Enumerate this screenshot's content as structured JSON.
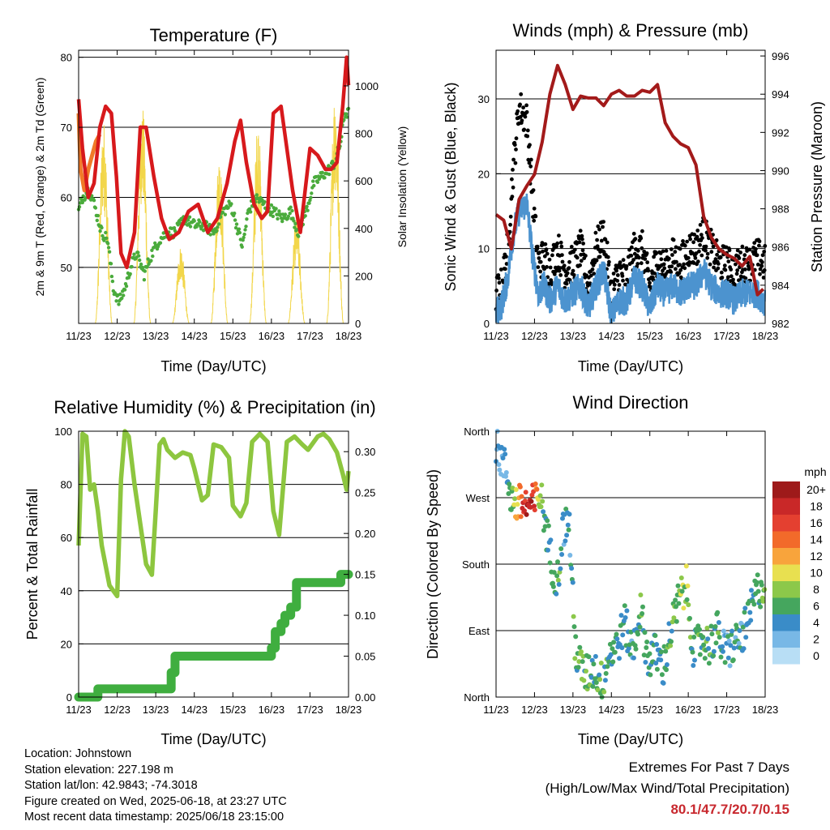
{
  "x_ticks": [
    "11/23",
    "12/23",
    "13/23",
    "14/23",
    "15/23",
    "16/23",
    "17/23",
    "18/23"
  ],
  "chart_data": [
    {
      "type": "line",
      "title": "Temperature (F)",
      "xlabel": "Time (Day/UTC)",
      "ylabel_left": "2m & 9m T (Red, Orange) & 2m Td (Green)",
      "ylabel_right": "Solar Insolation (Yellow)",
      "xlim": [
        0,
        7
      ],
      "ylim_left": [
        42,
        81
      ],
      "ylim_right": [
        0,
        1150
      ],
      "yticks_left": [
        50,
        60,
        70,
        80
      ],
      "yticks_right": [
        0,
        200,
        400,
        600,
        800,
        1000
      ],
      "grid": "horizontal",
      "colors": {
        "t2m": "#d7191c",
        "t9m": "#f07a28",
        "td": "#4aab3c",
        "solar": "#f2d64a"
      },
      "t2m": {
        "x": [
          0,
          0.1,
          0.25,
          0.4,
          0.55,
          0.7,
          0.85,
          0.98,
          1.1,
          1.25,
          1.45,
          1.6,
          1.75,
          1.95,
          2.15,
          2.35,
          2.6,
          2.85,
          3.1,
          3.35,
          3.6,
          3.85,
          4.05,
          4.2,
          4.35,
          4.55,
          4.75,
          4.9,
          5.05,
          5.25,
          5.4,
          5.55,
          5.75,
          6.0,
          6.2,
          6.4,
          6.55,
          6.7,
          6.85,
          6.95,
          7.0
        ],
        "y": [
          74,
          67,
          60,
          62,
          70,
          73,
          72,
          63,
          52,
          50,
          55,
          70,
          70,
          63,
          57,
          54,
          55,
          58,
          59,
          55,
          57,
          62,
          68,
          71,
          65,
          59,
          57,
          58,
          72,
          73,
          67,
          61,
          55,
          67,
          66,
          64,
          64,
          65,
          73,
          80,
          76
        ]
      },
      "t9m": {
        "x": [
          0,
          0.05,
          0.15,
          0.25,
          0.35,
          0.45,
          0.55
        ],
        "y": [
          72,
          64,
          61,
          64,
          66,
          68,
          69
        ]
      },
      "td": {
        "x": [
          0,
          0.1,
          0.25,
          0.35,
          0.5,
          0.6,
          0.75,
          0.9,
          1.05,
          1.2,
          1.35,
          1.5,
          1.7,
          1.9,
          2.1,
          2.3,
          2.5,
          2.75,
          3.0,
          3.25,
          3.5,
          3.75,
          3.95,
          4.1,
          4.25,
          4.4,
          4.6,
          4.8,
          5.05,
          5.3,
          5.5,
          5.7,
          5.9,
          6.1,
          6.3,
          6.5,
          6.65,
          6.8,
          6.9,
          6.98
        ],
        "y": [
          58,
          60,
          61,
          60,
          57,
          55,
          54,
          47,
          45,
          47,
          50,
          52,
          49,
          52,
          54,
          55,
          55,
          57,
          56,
          56,
          55,
          58,
          59,
          56,
          53,
          58,
          60,
          59,
          58,
          57,
          58,
          55,
          58,
          62,
          63,
          64,
          65,
          68,
          72,
          72
        ]
      },
      "solar_day_peaks": [
        {
          "day": 0.65,
          "peak": 860
        },
        {
          "day": 1.65,
          "peak": 950
        },
        {
          "day": 2.65,
          "peak": 330
        },
        {
          "day": 3.65,
          "peak": 720
        },
        {
          "day": 4.65,
          "peak": 860
        },
        {
          "day": 5.65,
          "peak": 460
        },
        {
          "day": 6.65,
          "peak": 1000
        }
      ]
    },
    {
      "type": "scatter",
      "title": "Winds (mph) & Pressure (mb)",
      "xlabel": "Time (Day/UTC)",
      "ylabel_left": "Sonic Wind & Gust (Blue, Black)",
      "ylabel_right": "Station Pressure (Maroon)",
      "xlim": [
        0,
        7
      ],
      "ylim_left": [
        0,
        36.5
      ],
      "ylim_right": [
        982,
        996.3
      ],
      "yticks_left": [
        0,
        10,
        20,
        30
      ],
      "yticks_right": [
        982,
        984,
        986,
        988,
        990,
        992,
        994,
        996
      ],
      "grid": "horizontal",
      "colors": {
        "wind": "#4c93cf",
        "gust": "#000000",
        "pressure": "#a31a1a"
      },
      "pressure": {
        "x": [
          0,
          0.2,
          0.4,
          0.6,
          0.8,
          1.0,
          1.2,
          1.4,
          1.6,
          1.8,
          2.0,
          2.2,
          2.4,
          2.6,
          2.8,
          3.0,
          3.2,
          3.4,
          3.6,
          3.8,
          4.0,
          4.2,
          4.4,
          4.6,
          4.8,
          5.0,
          5.2,
          5.4,
          5.6,
          5.8,
          6.0,
          6.2,
          6.4,
          6.6,
          6.8,
          6.95
        ],
        "y": [
          987.7,
          987.4,
          985.9,
          988.5,
          989.2,
          989.8,
          991.5,
          994.0,
          995.5,
          994.5,
          993.2,
          993.9,
          993.8,
          993.8,
          993.4,
          994.0,
          994.2,
          993.9,
          993.9,
          994.2,
          994.1,
          994.5,
          992.5,
          991.8,
          991.4,
          991.2,
          990.3,
          987.6,
          986.5,
          985.9,
          985.6,
          985.4,
          985.0,
          985.5,
          983.5,
          983.8
        ]
      },
      "wind": {
        "x": [
          0,
          0.15,
          0.3,
          0.45,
          0.6,
          0.8,
          0.95,
          1.1,
          1.25,
          1.4,
          1.6,
          1.8,
          2.0,
          2.2,
          2.4,
          2.6,
          2.8,
          3.0,
          3.2,
          3.4,
          3.6,
          3.8,
          4.0,
          4.2,
          4.4,
          4.6,
          4.8,
          5.0,
          5.2,
          5.4,
          5.6,
          5.8,
          6.0,
          6.2,
          6.4,
          6.6,
          6.8,
          6.95
        ],
        "y": [
          1.5,
          2.5,
          6,
          12,
          15,
          16,
          9,
          4,
          5,
          3,
          5,
          3,
          4,
          5,
          2,
          5,
          7,
          1,
          3,
          3,
          6,
          5,
          2,
          5,
          4,
          5,
          4,
          5,
          5,
          7,
          5,
          4,
          4,
          3,
          4,
          4,
          4,
          3
        ]
      },
      "gust": {
        "x": [
          0,
          0.15,
          0.3,
          0.45,
          0.6,
          0.8,
          0.95,
          1.1,
          1.25,
          1.4,
          1.6,
          1.8,
          2.0,
          2.2,
          2.4,
          2.6,
          2.8,
          3.0,
          3.2,
          3.4,
          3.6,
          3.8,
          4.0,
          4.2,
          4.4,
          4.6,
          4.8,
          5.0,
          5.2,
          5.4,
          5.6,
          5.8,
          6.0,
          6.2,
          6.4,
          6.6,
          6.8,
          6.95
        ],
        "y": [
          3,
          4,
          9,
          20,
          28,
          26,
          16,
          7,
          8,
          6,
          9,
          6,
          7,
          9,
          4,
          9,
          11,
          3,
          6,
          5,
          9,
          9,
          4,
          8,
          6,
          8,
          7,
          9,
          9,
          11,
          9,
          7,
          7,
          6,
          7,
          7,
          8,
          7
        ]
      }
    },
    {
      "type": "line",
      "title": "Relative Humidity (%) & Precipitation (in)",
      "xlabel": "Time (Day/UTC)",
      "ylabel_left": "Percent & Total Rainfall",
      "xlim": [
        0,
        7
      ],
      "ylim_left": [
        0,
        100
      ],
      "ylim_right": [
        0,
        0.325
      ],
      "yticks_left": [
        0,
        20,
        40,
        60,
        80,
        100
      ],
      "yticks_right": [
        "0.00",
        "0.05",
        "0.10",
        "0.15",
        "0.20",
        "0.25",
        "0.30"
      ],
      "grid": "horizontal",
      "colors": {
        "rh": "#8dc63f",
        "precip": "#3fae3f"
      },
      "rh": {
        "x": [
          0,
          0.1,
          0.2,
          0.3,
          0.4,
          0.5,
          0.6,
          0.8,
          1.0,
          1.1,
          1.2,
          1.3,
          1.45,
          1.55,
          1.75,
          1.9,
          2.0,
          2.1,
          2.2,
          2.3,
          2.5,
          2.7,
          2.9,
          3.0,
          3.2,
          3.35,
          3.5,
          3.7,
          3.9,
          4.0,
          4.2,
          4.35,
          4.5,
          4.7,
          4.9,
          5.05,
          5.2,
          5.4,
          5.6,
          5.8,
          5.95,
          6.2,
          6.35,
          6.5,
          6.7,
          6.85,
          6.95,
          7.0
        ],
        "y": [
          57,
          99,
          98,
          78,
          80,
          70,
          57,
          42,
          38,
          82,
          100,
          98,
          80,
          70,
          50,
          46,
          70,
          95,
          97,
          93,
          90,
          92,
          91,
          86,
          74,
          76,
          95,
          94,
          90,
          72,
          68,
          73,
          96,
          99,
          96,
          70,
          61,
          96,
          98,
          95,
          93,
          98,
          99,
          97,
          92,
          84,
          78,
          85
        ]
      },
      "precip_in": {
        "x": [
          0,
          0.3,
          0.5,
          0.7,
          2.3,
          2.4,
          2.5,
          2.7,
          4.5,
          5.0,
          5.1,
          5.25,
          5.35,
          5.5,
          5.65,
          6.0,
          6.6,
          6.8,
          7.0
        ],
        "y": [
          0.0,
          0.0,
          0.01,
          0.01,
          0.01,
          0.03,
          0.05,
          0.05,
          0.05,
          0.06,
          0.08,
          0.09,
          0.1,
          0.11,
          0.14,
          0.14,
          0.14,
          0.15,
          0.15
        ]
      }
    },
    {
      "type": "scatter",
      "title": "Wind Direction",
      "xlabel": "Time (Day/UTC)",
      "ylabel_left": "Direction (Colored By Speed)",
      "xlim": [
        0,
        7
      ],
      "ylim": [
        0,
        360
      ],
      "yticks_left": [
        "North",
        "East",
        "South",
        "West",
        "North"
      ],
      "grid": "horizontal",
      "colorbar": {
        "title": "mph",
        "labels": [
          "20+",
          "18",
          "16",
          "14",
          "12",
          "10",
          "8",
          "6",
          "4",
          "2",
          "0"
        ],
        "colors": [
          "#9e1a1a",
          "#c92828",
          "#e44030",
          "#f26a2a",
          "#f8a43c",
          "#e8e050",
          "#8cc84a",
          "#45a65e",
          "#3a8cc8",
          "#78b8e6",
          "#b8def5"
        ]
      },
      "direction_deg": {
        "x": [
          0,
          0.15,
          0.3,
          0.4,
          0.55,
          0.7,
          0.85,
          1.0,
          1.15,
          1.3,
          1.45,
          1.6,
          1.75,
          1.9,
          2.05,
          2.2,
          2.35,
          2.55,
          2.75,
          2.95,
          3.15,
          3.35,
          3.55,
          3.75,
          3.95,
          4.15,
          4.35,
          4.55,
          4.75,
          4.95,
          5.15,
          5.35,
          5.55,
          5.75,
          5.95,
          6.15,
          6.35,
          6.55,
          6.75,
          6.9
        ],
        "y": [
          345,
          320,
          300,
          270,
          260,
          262,
          258,
          262,
          275,
          230,
          180,
          160,
          230,
          240,
          70,
          40,
          30,
          40,
          20,
          60,
          70,
          100,
          60,
          120,
          50,
          60,
          40,
          90,
          130,
          150,
          60,
          80,
          70,
          90,
          60,
          70,
          80,
          100,
          140,
          150
        ],
        "speed": [
          3,
          2,
          3,
          6,
          12,
          17,
          19,
          16,
          8,
          5,
          4,
          6,
          5,
          4,
          6,
          7,
          6,
          5,
          7,
          5,
          4,
          5,
          4,
          6,
          5,
          5,
          5,
          6,
          7,
          8,
          5,
          6,
          5,
          6,
          4,
          5,
          4,
          5,
          5,
          6
        ]
      }
    }
  ],
  "info": {
    "location": "Location: Johnstown",
    "elevation": "Station elevation: 227.198 m",
    "latlon": "Station lat/lon: 42.9843; -74.3018",
    "created": "Figure created on Wed, 2025-06-18, at 23:27 UTC",
    "recent": "Most recent data timestamp: 2025/06/18 23:15:00"
  },
  "extremes": {
    "title": "Extremes For Past 7 Days",
    "subtitle": "(High/Low/Max Wind/Total Precipitation)",
    "values": "80.1/47.7/20.7/0.15",
    "color": "#c8282e"
  }
}
